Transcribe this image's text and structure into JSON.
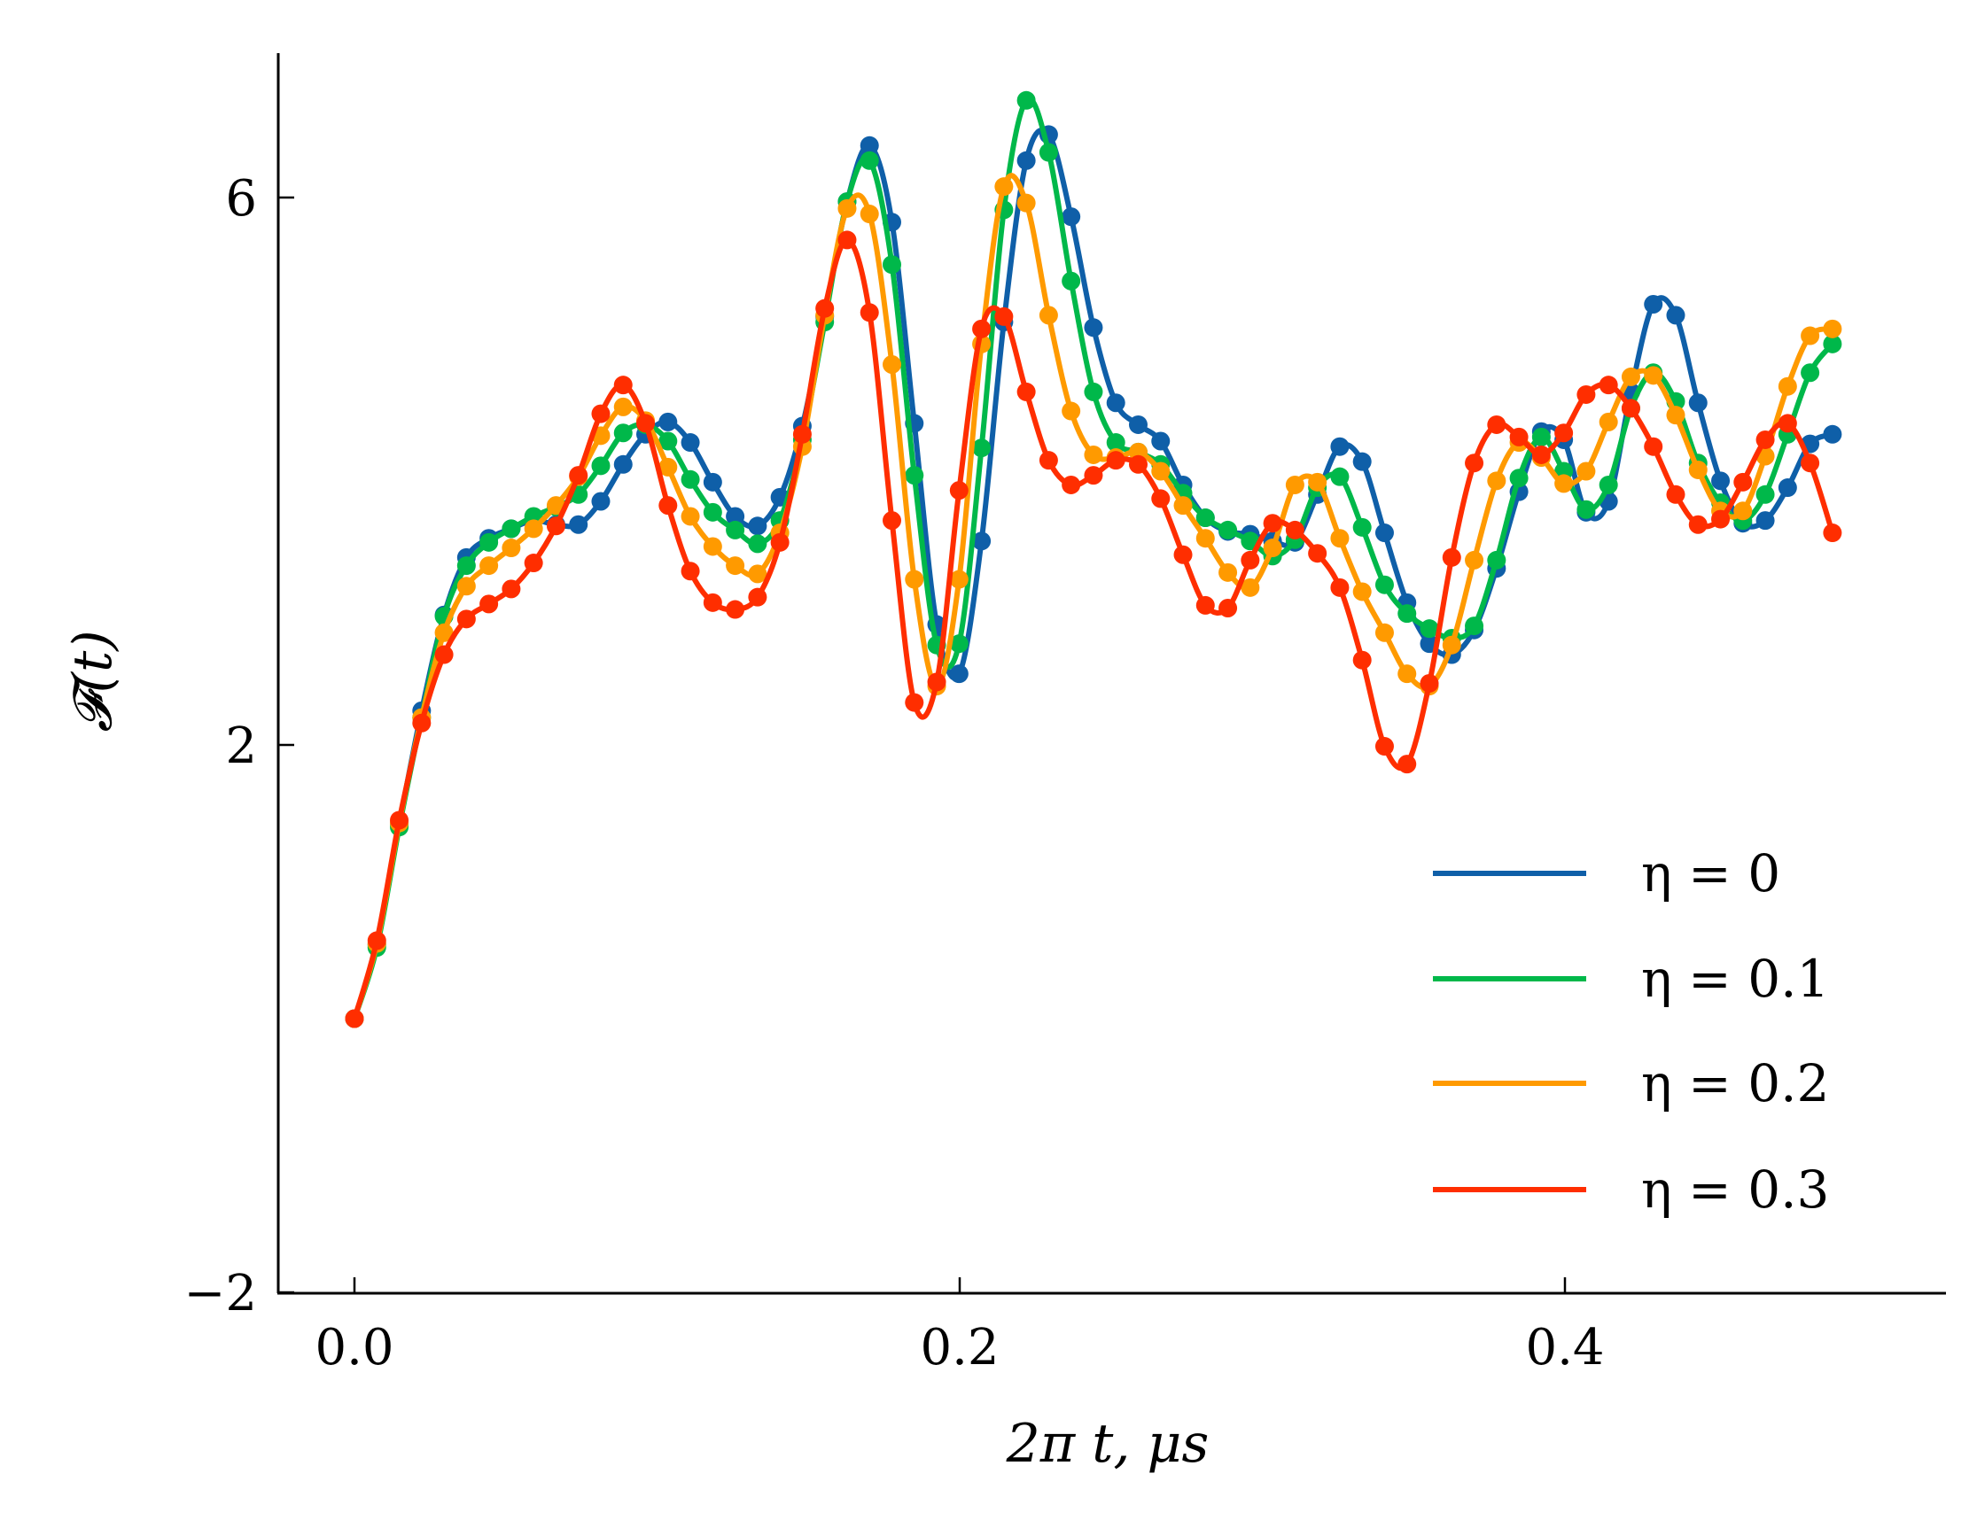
{
  "chart_data": {
    "type": "line",
    "title": "",
    "xlabel": "2π t, μs",
    "ylabel": "𝓕(t)",
    "xlim": [
      -0.025,
      0.525
    ],
    "ylim": [
      -2,
      7.3
    ],
    "x_ticks": [
      0.0,
      0.2,
      0.4
    ],
    "x_tick_labels": [
      "0.0",
      "0.2",
      "0.4"
    ],
    "y_ticks": [
      -2,
      2,
      6
    ],
    "y_tick_labels": [
      "−2",
      "2",
      "6"
    ],
    "grid": false,
    "legend_position": "bottom-right",
    "markers": true,
    "x": [
      0,
      0.0074,
      0.0148,
      0.0222,
      0.0296,
      0.037,
      0.0444,
      0.0518,
      0.0592,
      0.0666,
      0.074,
      0.0814,
      0.0888,
      0.0962,
      0.1036,
      0.111,
      0.1184,
      0.1258,
      0.1332,
      0.1406,
      0.148,
      0.1554,
      0.1628,
      0.1702,
      0.1776,
      0.185,
      0.1924,
      0.1998,
      0.2072,
      0.2146,
      0.222,
      0.2294,
      0.2368,
      0.2442,
      0.2516,
      0.259,
      0.2664,
      0.2738,
      0.2812,
      0.2886,
      0.296,
      0.3034,
      0.3108,
      0.3182,
      0.3256,
      0.333,
      0.3404,
      0.3478,
      0.3552,
      0.3626,
      0.37,
      0.3774,
      0.3848,
      0.3922,
      0.3996,
      0.407,
      0.4144,
      0.4218,
      0.4292,
      0.4366,
      0.444,
      0.4514,
      0.4588,
      0.4662,
      0.4736,
      0.481,
      0.4884
    ],
    "series": [
      {
        "name": "η = 0",
        "color": "#0F5FA8",
        "values": [
          0.0,
          0.54,
          1.42,
          2.25,
          2.95,
          3.37,
          3.51,
          3.58,
          3.64,
          3.61,
          3.61,
          3.78,
          4.05,
          4.27,
          4.36,
          4.21,
          3.92,
          3.67,
          3.6,
          3.81,
          4.33,
          5.13,
          5.97,
          6.38,
          5.82,
          4.35,
          2.88,
          2.52,
          3.49,
          5.09,
          6.27,
          6.46,
          5.86,
          5.05,
          4.5,
          4.34,
          4.22,
          3.9,
          3.66,
          3.56,
          3.54,
          3.49,
          3.48,
          3.83,
          4.18,
          4.07,
          3.55,
          3.04,
          2.74,
          2.66,
          2.84,
          3.29,
          3.85,
          4.29,
          4.23,
          3.7,
          3.78,
          4.58,
          5.22,
          5.14,
          4.5,
          3.93,
          3.62,
          3.64,
          3.88,
          4.2,
          4.27
        ]
      },
      {
        "name": "η = 0.1",
        "color": "#00B84A",
        "values": [
          0.0,
          0.52,
          1.4,
          2.2,
          2.94,
          3.31,
          3.48,
          3.58,
          3.67,
          3.74,
          3.83,
          4.04,
          4.28,
          4.34,
          4.22,
          3.94,
          3.7,
          3.57,
          3.47,
          3.64,
          4.23,
          5.09,
          5.97,
          6.27,
          5.51,
          3.97,
          2.73,
          2.74,
          4.17,
          5.91,
          6.71,
          6.33,
          5.39,
          4.58,
          4.21,
          4.14,
          4.05,
          3.84,
          3.66,
          3.57,
          3.49,
          3.38,
          3.5,
          3.88,
          3.96,
          3.59,
          3.17,
          2.96,
          2.85,
          2.78,
          2.87,
          3.35,
          3.95,
          4.25,
          4.0,
          3.72,
          3.9,
          4.46,
          4.72,
          4.51,
          4.06,
          3.77,
          3.64,
          3.83,
          4.27,
          4.72,
          4.93
        ]
      },
      {
        "name": "η = 0.2",
        "color": "#FF9A00",
        "values": [
          0.0,
          0.55,
          1.43,
          2.2,
          2.82,
          3.16,
          3.31,
          3.44,
          3.58,
          3.75,
          3.96,
          4.26,
          4.47,
          4.37,
          4.03,
          3.67,
          3.45,
          3.31,
          3.25,
          3.55,
          4.18,
          5.14,
          5.92,
          5.88,
          4.78,
          3.21,
          2.43,
          3.21,
          4.93,
          6.08,
          5.96,
          5.14,
          4.44,
          4.12,
          4.1,
          4.14,
          4.0,
          3.75,
          3.51,
          3.26,
          3.15,
          3.44,
          3.9,
          3.92,
          3.51,
          3.12,
          2.82,
          2.52,
          2.43,
          2.73,
          3.35,
          3.93,
          4.21,
          4.1,
          3.91,
          4.0,
          4.36,
          4.69,
          4.7,
          4.41,
          4.01,
          3.71,
          3.71,
          4.11,
          4.62,
          4.99,
          5.04
        ]
      },
      {
        "name": "η = 0.3",
        "color": "#FF2E00",
        "values": [
          0.0,
          0.57,
          1.45,
          2.16,
          2.66,
          2.92,
          3.03,
          3.14,
          3.33,
          3.6,
          3.97,
          4.42,
          4.63,
          4.35,
          3.75,
          3.27,
          3.04,
          2.99,
          3.08,
          3.48,
          4.27,
          5.19,
          5.69,
          5.16,
          3.64,
          2.31,
          2.46,
          3.86,
          5.04,
          5.13,
          4.58,
          4.08,
          3.9,
          3.97,
          4.08,
          4.05,
          3.8,
          3.39,
          3.02,
          3.0,
          3.35,
          3.62,
          3.57,
          3.4,
          3.15,
          2.62,
          1.99,
          1.86,
          2.45,
          3.37,
          4.06,
          4.34,
          4.25,
          4.12,
          4.28,
          4.56,
          4.63,
          4.46,
          4.18,
          3.83,
          3.61,
          3.65,
          3.92,
          4.23,
          4.35,
          4.06,
          3.55
        ]
      }
    ]
  }
}
